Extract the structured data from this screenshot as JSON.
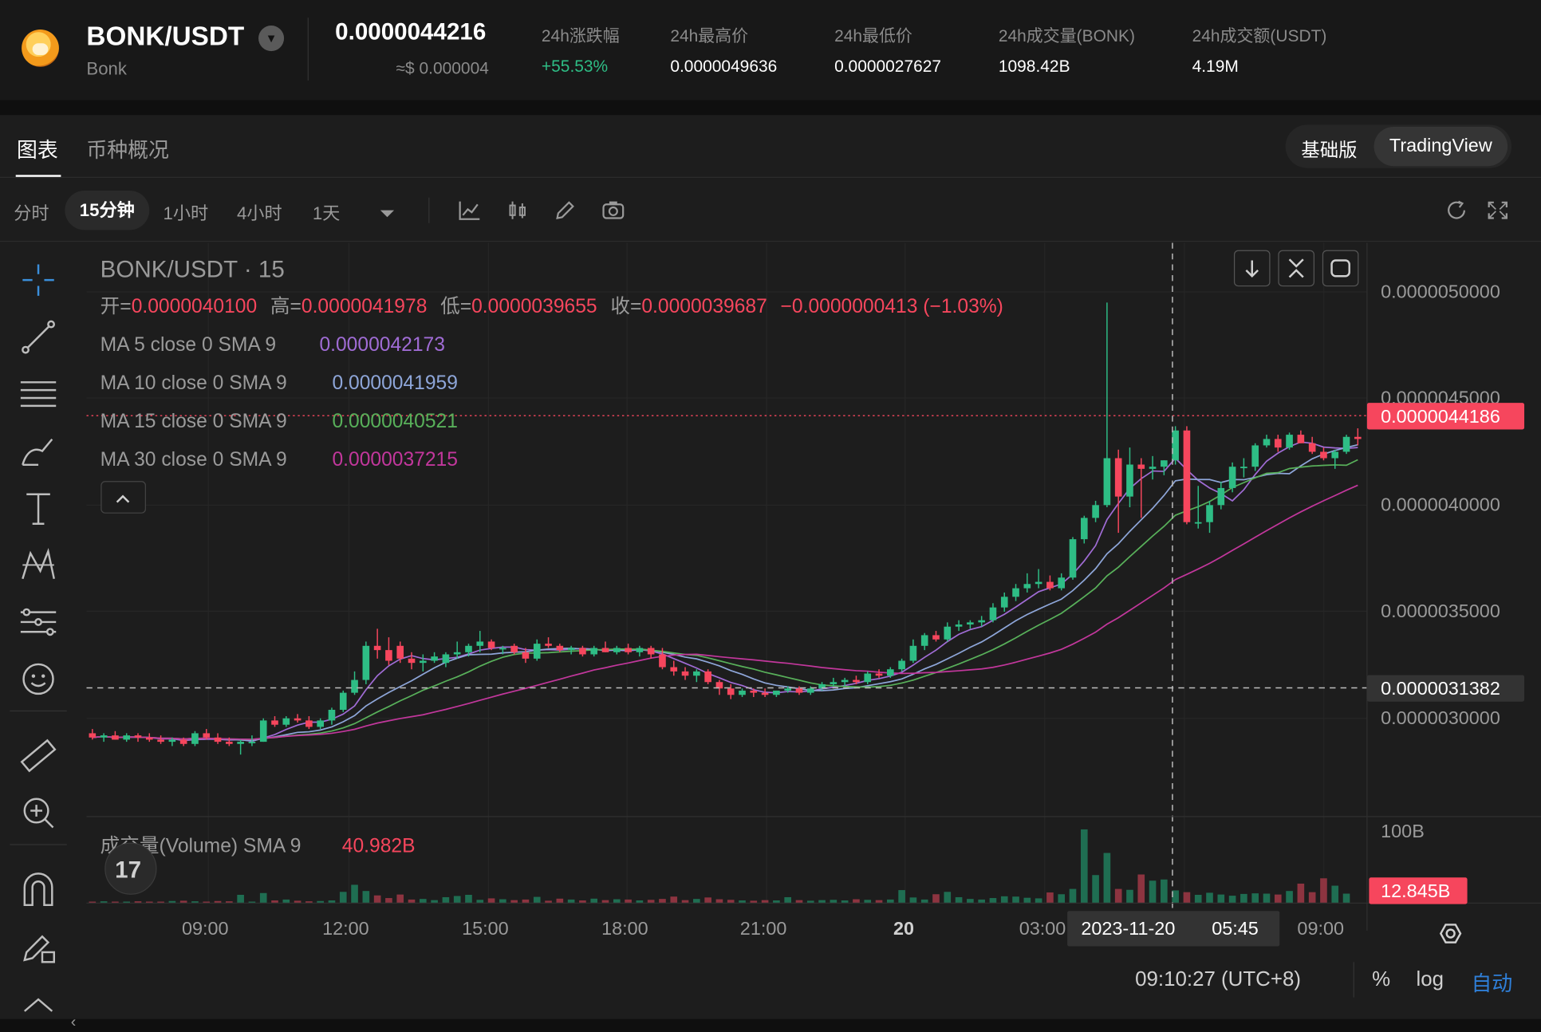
{
  "header": {
    "pair": "BONK/USDT",
    "token_name": "Bonk",
    "price": "0.0000044216",
    "price_usd": "≈$ 0.000004",
    "stats": [
      {
        "label": "24h涨跌幅",
        "value": "+55.53%"
      },
      {
        "label": "24h最高价",
        "value": "0.0000049636"
      },
      {
        "label": "24h最低价",
        "value": "0.0000027627"
      },
      {
        "label": "24h成交量(BONK)",
        "value": "1098.42B"
      },
      {
        "label": "24h成交额(USDT)",
        "value": "4.19M"
      }
    ]
  },
  "tabs": [
    "图表",
    "币种概况"
  ],
  "view_modes": [
    "基础版",
    "TradingView"
  ],
  "intervals": [
    "分时",
    "15分钟",
    "1小时",
    "4小时",
    "1天"
  ],
  "toolbar_icons": [
    "indicators-icon",
    "chart-type-icon",
    "draw-icon",
    "snapshot-icon",
    "reset-icon",
    "fullscreen-icon"
  ],
  "chart": {
    "symbol_title": "BONK/USDT · 15",
    "ohlc": {
      "open_label": "开=",
      "open": "0.0000040100",
      "high_label": "高=",
      "high": "0.0000041978",
      "low_label": "低=",
      "low": "0.0000039655",
      "close_label": "收=",
      "close": "0.0000039687",
      "change": "−0.0000000413 (−1.03%)"
    },
    "ma": [
      {
        "label": "MA 5 close 0 SMA 9",
        "value": "0.0000042173",
        "color": "#a06cd5"
      },
      {
        "label": "MA 10 close 0 SMA 9",
        "value": "0.0000041959",
        "color": "#8ea6d9"
      },
      {
        "label": "MA 15 close 0 SMA 9",
        "value": "0.0000040521",
        "color": "#58b05a"
      },
      {
        "label": "MA 30 close 0 SMA 9",
        "value": "0.0000037215",
        "color": "#c2379c"
      }
    ],
    "volume_label": "成交量(Volume) SMA 9",
    "volume_value": "40.982B",
    "price_axis": [
      "0.0000050000",
      "0.0000045000",
      "0.0000040000",
      "0.0000035000",
      "0.0000030000"
    ],
    "last_price_tag": "0.0000044186",
    "crosshair_price_tag": "0.0000031382",
    "volume_axis": "100B",
    "volume_tag": "12.845B",
    "time_axis": [
      "09:00",
      "12:00",
      "15:00",
      "18:00",
      "21:00",
      "20",
      "03:00",
      "09:00"
    ],
    "crosshair_time": "2023-11-20",
    "crosshair_clock": "05:45",
    "tv_logo": "17"
  },
  "footer": {
    "clock": "09:10:27 (UTC+8)",
    "options": [
      "%",
      "log",
      "自动"
    ]
  },
  "colors": {
    "up": "#2ebd85",
    "down": "#f6465d",
    "background": "#1d1d1d"
  },
  "chart_data": {
    "type": "candlestick",
    "title": "BONK/USDT · 15",
    "interval": "15m",
    "ylim": [
      2.6e-06,
      5.2e-06
    ],
    "candles": [
      [
        2.93e-06,
        2.95e-06,
        2.9e-06,
        2.91e-06
      ],
      [
        2.91e-06,
        2.93e-06,
        2.89e-06,
        2.92e-06
      ],
      [
        2.92e-06,
        2.94e-06,
        2.9e-06,
        2.9e-06
      ],
      [
        2.9e-06,
        2.93e-06,
        2.89e-06,
        2.92e-06
      ],
      [
        2.92e-06,
        2.93e-06,
        2.89e-06,
        2.91e-06
      ],
      [
        2.91e-06,
        2.93e-06,
        2.89e-06,
        2.9e-06
      ],
      [
        2.9e-06,
        2.92e-06,
        2.88e-06,
        2.89e-06
      ],
      [
        2.89e-06,
        2.91e-06,
        2.87e-06,
        2.9e-06
      ],
      [
        2.9e-06,
        2.91e-06,
        2.87e-06,
        2.88e-06
      ],
      [
        2.88e-06,
        2.94e-06,
        2.87e-06,
        2.93e-06
      ],
      [
        2.93e-06,
        2.95e-06,
        2.9e-06,
        2.91e-06
      ],
      [
        2.91e-06,
        2.93e-06,
        2.88e-06,
        2.89e-06
      ],
      [
        2.89e-06,
        2.91e-06,
        2.87e-06,
        2.88e-06
      ],
      [
        2.88e-06,
        2.9e-06,
        2.83e-06,
        2.89e-06
      ],
      [
        2.89e-06,
        2.92e-06,
        2.87e-06,
        2.89e-06
      ],
      [
        2.89e-06,
        3e-06,
        2.89e-06,
        2.99e-06
      ],
      [
        2.99e-06,
        3.01e-06,
        2.96e-06,
        2.97e-06
      ],
      [
        2.97e-06,
        3.01e-06,
        2.96e-06,
        3e-06
      ],
      [
        3e-06,
        3.02e-06,
        2.98e-06,
        2.99e-06
      ],
      [
        2.99e-06,
        3.01e-06,
        2.95e-06,
        2.96e-06
      ],
      [
        2.96e-06,
        3e-06,
        2.95e-06,
        2.99e-06
      ],
      [
        2.99e-06,
        3.05e-06,
        2.97e-06,
        3.04e-06
      ],
      [
        3.04e-06,
        3.13e-06,
        3.03e-06,
        3.12e-06
      ],
      [
        3.12e-06,
        3.22e-06,
        3.11e-06,
        3.18e-06
      ],
      [
        3.18e-06,
        3.36e-06,
        3.16e-06,
        3.34e-06
      ],
      [
        3.34e-06,
        3.42e-06,
        3.28e-06,
        3.32e-06
      ],
      [
        3.32e-06,
        3.38e-06,
        3.25e-06,
        3.27e-06
      ],
      [
        3.34e-06,
        3.36e-06,
        3.26e-06,
        3.28e-06
      ],
      [
        3.28e-06,
        3.31e-06,
        3.23e-06,
        3.26e-06
      ],
      [
        3.26e-06,
        3.3e-06,
        3.22e-06,
        3.27e-06
      ],
      [
        3.27e-06,
        3.31e-06,
        3.26e-06,
        3.29e-06
      ],
      [
        3.26e-06,
        3.31e-06,
        3.24e-06,
        3.3e-06
      ],
      [
        3.3e-06,
        3.36e-06,
        3.28e-06,
        3.31e-06
      ],
      [
        3.31e-06,
        3.35e-06,
        3.29e-06,
        3.34e-06
      ],
      [
        3.34e-06,
        3.41e-06,
        3.31e-06,
        3.36e-06
      ],
      [
        3.36e-06,
        3.37e-06,
        3.32e-06,
        3.33e-06
      ],
      [
        3.33e-06,
        3.34e-06,
        3.3e-06,
        3.33e-06
      ],
      [
        3.34e-06,
        3.35e-06,
        3.3e-06,
        3.31e-06
      ],
      [
        3.31e-06,
        3.33e-06,
        3.26e-06,
        3.28e-06
      ],
      [
        3.28e-06,
        3.37e-06,
        3.27e-06,
        3.35e-06
      ],
      [
        3.35e-06,
        3.38e-06,
        3.33e-06,
        3.34e-06
      ],
      [
        3.34e-06,
        3.35e-06,
        3.31e-06,
        3.32e-06
      ],
      [
        3.32e-06,
        3.34e-06,
        3.3e-06,
        3.33e-06
      ],
      [
        3.33e-06,
        3.34e-06,
        3.29e-06,
        3.3e-06
      ],
      [
        3.3e-06,
        3.34e-06,
        3.29e-06,
        3.33e-06
      ],
      [
        3.33e-06,
        3.36e-06,
        3.31e-06,
        3.31e-06
      ],
      [
        3.31e-06,
        3.34e-06,
        3.3e-06,
        3.33e-06
      ],
      [
        3.33e-06,
        3.35e-06,
        3.3e-06,
        3.31e-06
      ],
      [
        3.31e-06,
        3.34e-06,
        3.29e-06,
        3.33e-06
      ],
      [
        3.33e-06,
        3.34e-06,
        3.28e-06,
        3.3e-06
      ],
      [
        3.3e-06,
        3.33e-06,
        3.23e-06,
        3.24e-06
      ],
      [
        3.24e-06,
        3.27e-06,
        3.2e-06,
        3.22e-06
      ],
      [
        3.22e-06,
        3.24e-06,
        3.18e-06,
        3.2e-06
      ],
      [
        3.2e-06,
        3.23e-06,
        3.17e-06,
        3.22e-06
      ],
      [
        3.22e-06,
        3.23e-06,
        3.16e-06,
        3.17e-06
      ],
      [
        3.17e-06,
        3.18e-06,
        3.11e-06,
        3.14e-06
      ],
      [
        3.14e-06,
        3.16e-06,
        3.09e-06,
        3.11e-06
      ],
      [
        3.11e-06,
        3.14e-06,
        3.1e-06,
        3.13e-06
      ],
      [
        3.13e-06,
        3.14e-06,
        3.1e-06,
        3.12e-06
      ],
      [
        3.12e-06,
        3.14e-06,
        3.1e-06,
        3.11e-06
      ],
      [
        3.11e-06,
        3.13e-06,
        3.1e-06,
        3.13e-06
      ],
      [
        3.13e-06,
        3.15e-06,
        3.12e-06,
        3.14e-06
      ],
      [
        3.14e-06,
        3.15e-06,
        3.11e-06,
        3.12e-06
      ],
      [
        3.12e-06,
        3.15e-06,
        3.11e-06,
        3.14e-06
      ],
      [
        3.14e-06,
        3.17e-06,
        3.13e-06,
        3.16e-06
      ],
      [
        3.16e-06,
        3.19e-06,
        3.15e-06,
        3.17e-06
      ],
      [
        3.17e-06,
        3.19e-06,
        3.15e-06,
        3.18e-06
      ],
      [
        3.18e-06,
        3.2e-06,
        3.16e-06,
        3.17e-06
      ],
      [
        3.17e-06,
        3.22e-06,
        3.16e-06,
        3.21e-06
      ],
      [
        3.21e-06,
        3.23e-06,
        3.19e-06,
        3.2e-06
      ],
      [
        3.2e-06,
        3.24e-06,
        3.19e-06,
        3.23e-06
      ],
      [
        3.23e-06,
        3.28e-06,
        3.22e-06,
        3.27e-06
      ],
      [
        3.27e-06,
        3.37e-06,
        3.26e-06,
        3.34e-06
      ],
      [
        3.34e-06,
        3.4e-06,
        3.32e-06,
        3.39e-06
      ],
      [
        3.39e-06,
        3.41e-06,
        3.36e-06,
        3.37e-06
      ],
      [
        3.37e-06,
        3.45e-06,
        3.36e-06,
        3.43e-06
      ],
      [
        3.43e-06,
        3.46e-06,
        3.41e-06,
        3.44e-06
      ],
      [
        3.44e-06,
        3.46e-06,
        3.42e-06,
        3.45e-06
      ],
      [
        3.45e-06,
        3.48e-06,
        3.43e-06,
        3.46e-06
      ],
      [
        3.46e-06,
        3.54e-06,
        3.45e-06,
        3.52e-06
      ],
      [
        3.52e-06,
        3.59e-06,
        3.5e-06,
        3.57e-06
      ],
      [
        3.57e-06,
        3.63e-06,
        3.55e-06,
        3.61e-06
      ],
      [
        3.61e-06,
        3.68e-06,
        3.59e-06,
        3.63e-06
      ],
      [
        3.63e-06,
        3.7e-06,
        3.61e-06,
        3.64e-06
      ],
      [
        3.64e-06,
        3.67e-06,
        3.6e-06,
        3.61e-06
      ],
      [
        3.61e-06,
        3.68e-06,
        3.6e-06,
        3.66e-06
      ],
      [
        3.66e-06,
        3.85e-06,
        3.65e-06,
        3.84e-06
      ],
      [
        3.84e-06,
        3.95e-06,
        3.82e-06,
        3.94e-06
      ],
      [
        3.94e-06,
        4.02e-06,
        3.92e-06,
        4e-06
      ],
      [
        4e-06,
        4.95e-06,
        3.99e-06,
        4.22e-06
      ],
      [
        4.22e-06,
        4.26e-06,
        3.87e-06,
        4.04e-06
      ],
      [
        4.04e-06,
        4.27e-06,
        3.99e-06,
        4.19e-06
      ],
      [
        4.19e-06,
        4.22e-06,
        3.94e-06,
        4.17e-06
      ],
      [
        4.17e-06,
        4.23e-06,
        4.12e-06,
        4.18e-06
      ],
      [
        4.18e-06,
        4.21e-06,
        4.14e-06,
        4.21e-06
      ],
      [
        4.21e-06,
        4.37e-06,
        4.19e-06,
        4.35e-06
      ],
      [
        4.35e-06,
        4.37e-06,
        3.91e-06,
        3.92e-06
      ],
      [
        3.92e-06,
        4.09e-06,
        3.89e-06,
        3.92e-06
      ],
      [
        3.92e-06,
        4.02e-06,
        3.87e-06,
        4e-06
      ],
      [
        4e-06,
        4.11e-06,
        3.98e-06,
        4.08e-06
      ],
      [
        4.08e-06,
        4.2e-06,
        4.06e-06,
        4.18e-06
      ],
      [
        4.18e-06,
        4.22e-06,
        4.13e-06,
        4.18e-06
      ],
      [
        4.18e-06,
        4.29e-06,
        4.16e-06,
        4.28e-06
      ],
      [
        4.28e-06,
        4.33e-06,
        4.27e-06,
        4.31e-06
      ],
      [
        4.31e-06,
        4.33e-06,
        4.25e-06,
        4.27e-06
      ],
      [
        4.27e-06,
        4.34e-06,
        4.26e-06,
        4.33e-06
      ],
      [
        4.33e-06,
        4.35e-06,
        4.29e-06,
        4.29e-06
      ],
      [
        4.29e-06,
        4.32e-06,
        4.24e-06,
        4.25e-06
      ],
      [
        4.25e-06,
        4.27e-06,
        4.21e-06,
        4.22e-06
      ],
      [
        4.22e-06,
        4.26e-06,
        4.17e-06,
        4.25e-06
      ],
      [
        4.25e-06,
        4.33e-06,
        4.24e-06,
        4.32e-06
      ],
      [
        4.32e-06,
        4.36e-06,
        4.28e-06,
        4.31e-06
      ]
    ],
    "volumes": [
      0.5,
      0.6,
      0.5,
      0.4,
      0.6,
      0.5,
      0.4,
      0.7,
      0.8,
      0.6,
      0.5,
      0.7,
      0.6,
      2.8,
      0.5,
      3.4,
      0.9,
      1.2,
      0.8,
      0.6,
      0.7,
      0.9,
      3.8,
      6.2,
      4.1,
      2.6,
      1.7,
      2.9,
      1.2,
      1.4,
      1.0,
      2.0,
      2.4,
      2.8,
      1.1,
      1.6,
      1.3,
      1.0,
      1.2,
      2.1,
      0.8,
      1.5,
      1.2,
      0.9,
      1.5,
      1.0,
      1.3,
      1.2,
      0.9,
      1.1,
      1.4,
      2.2,
      1.0,
      1.4,
      1.9,
      1.3,
      1.1,
      0.9,
      0.8,
      1.0,
      0.9,
      2.0,
      1.0,
      0.8,
      1.0,
      1.1,
      0.9,
      1.3,
      1.1,
      1.0,
      1.2,
      4.4,
      1.9,
      1.2,
      3.0,
      3.8,
      2.0,
      1.4,
      1.2,
      1.7,
      2.3,
      2.2,
      1.8,
      1.6,
      3.6,
      3.0,
      4.8,
      25.0,
      9.5,
      17.0,
      4.8,
      4.5,
      9.7,
      7.6,
      8.0,
      4.3,
      3.7,
      2.8,
      3.5,
      2.9,
      2.5,
      3.1,
      3.3,
      3.2,
      2.9,
      4.1,
      6.6,
      3.7,
      8.4,
      5.9,
      3.2
    ]
  }
}
